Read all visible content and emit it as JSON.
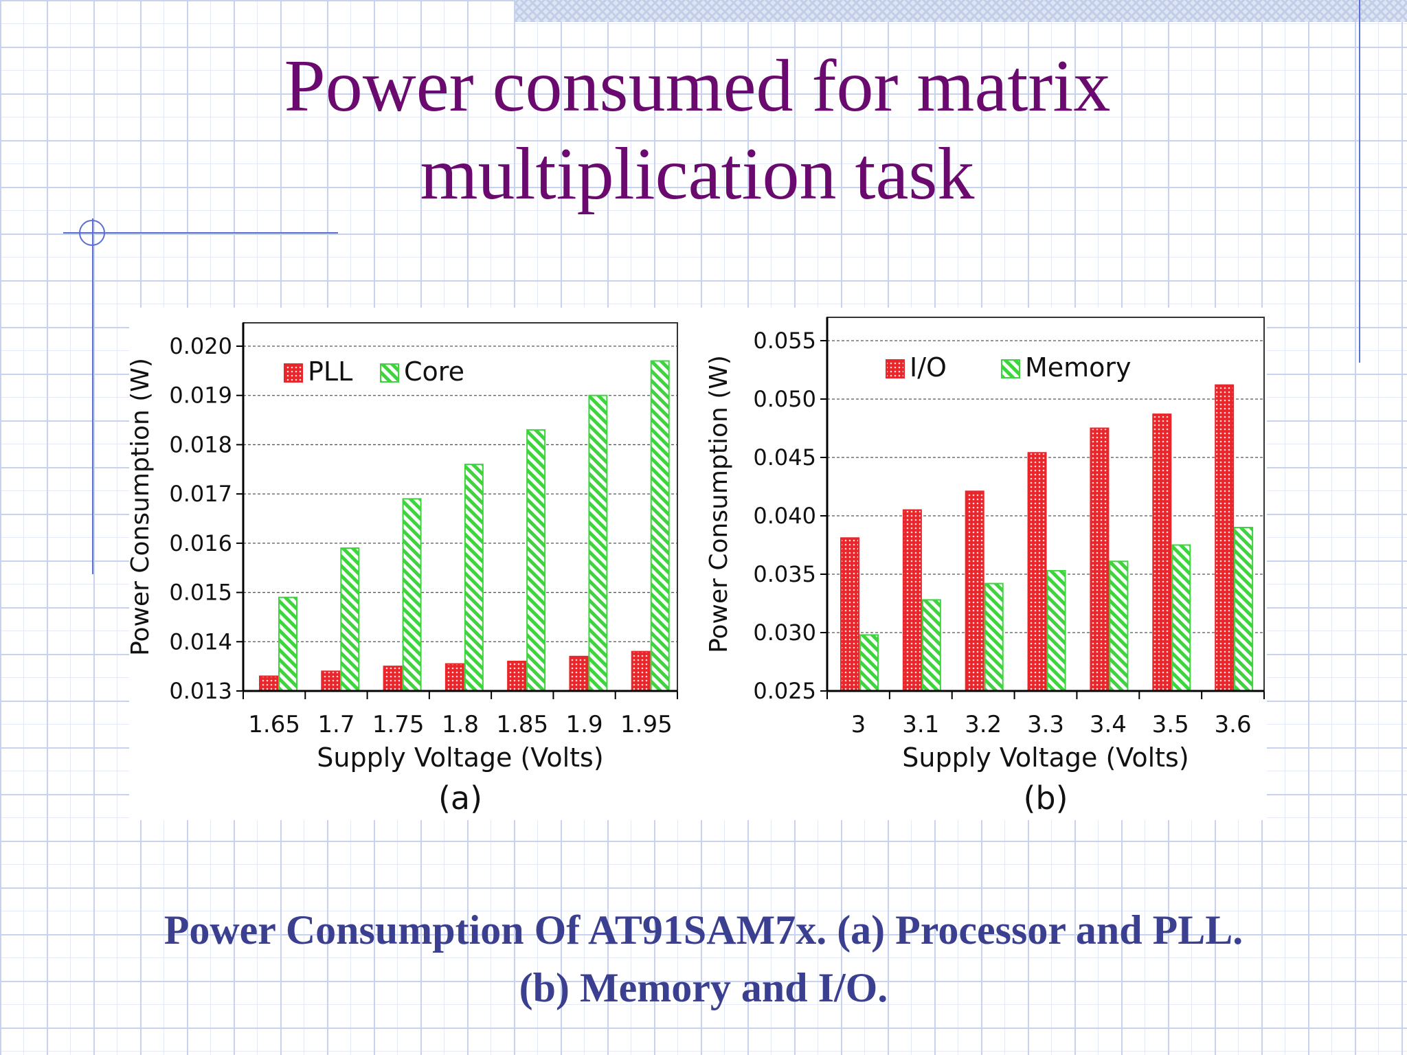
{
  "slide": {
    "title_line1": "Power consumed for matrix",
    "title_line2": "multiplication task",
    "caption_line1": "Power Consumption Of AT91SAM7x. (a) Processor and PLL.",
    "caption_line2": "(b) Memory and I/O."
  },
  "colors": {
    "title": "#6a0a6e",
    "caption": "#3b3f8f",
    "red_series": "#e8262b",
    "green_series": "#3dd43d"
  },
  "chart_data": [
    {
      "type": "bar",
      "panel_label": "(a)",
      "xlabel": "Supply Voltage (Volts)",
      "ylabel": "Power Consumption (W)",
      "categories": [
        "1.65",
        "1.7",
        "1.75",
        "1.8",
        "1.85",
        "1.9",
        "1.95"
      ],
      "ylim": [
        0.013,
        0.02
      ],
      "yticks": [
        "0.013",
        "0.014",
        "0.015",
        "0.016",
        "0.017",
        "0.018",
        "0.019",
        "0.020"
      ],
      "grid": true,
      "legend_position": "top-left",
      "series": [
        {
          "name": "PLL",
          "color": "#e8262b",
          "pattern": "dots",
          "values": [
            0.0133,
            0.0134,
            0.0135,
            0.01355,
            0.0136,
            0.0137,
            0.0138
          ]
        },
        {
          "name": "Core",
          "color": "#3dd43d",
          "pattern": "hatch",
          "values": [
            0.0149,
            0.0159,
            0.0169,
            0.0176,
            0.0183,
            0.019,
            0.0197
          ]
        }
      ]
    },
    {
      "type": "bar",
      "panel_label": "(b)",
      "xlabel": "Supply Voltage (Volts)",
      "ylabel": "Power Consumption (W)",
      "categories": [
        "3",
        "3.1",
        "3.2",
        "3.3",
        "3.4",
        "3.5",
        "3.6"
      ],
      "ylim": [
        0.025,
        0.055
      ],
      "yticks": [
        "0.025",
        "0.030",
        "0.035",
        "0.040",
        "0.045",
        "0.050",
        "0.055"
      ],
      "grid": true,
      "legend_position": "top-left",
      "series": [
        {
          "name": "I/O",
          "color": "#e8262b",
          "pattern": "dots",
          "values": [
            0.0381,
            0.0405,
            0.0421,
            0.0454,
            0.0475,
            0.0487,
            0.0512
          ]
        },
        {
          "name": "Memory",
          "color": "#3dd43d",
          "pattern": "hatch",
          "values": [
            0.0298,
            0.0328,
            0.0342,
            0.0353,
            0.0361,
            0.0375,
            0.039
          ]
        }
      ]
    }
  ]
}
